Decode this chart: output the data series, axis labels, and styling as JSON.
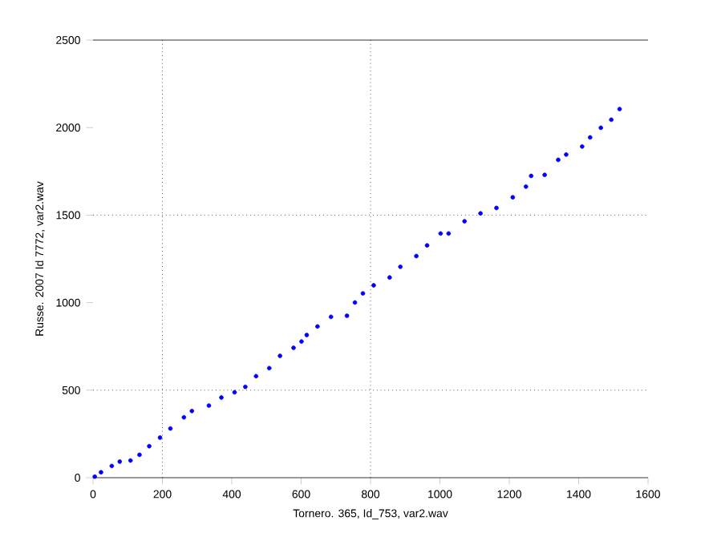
{
  "chart_data": {
    "type": "scatter",
    "xlabel": "Tornero. 365, Id_753, var2.wav",
    "ylabel": "Russe. 2007 Id 7772, var2.wav",
    "xlim": [
      0,
      1600
    ],
    "ylim": [
      0,
      2500
    ],
    "xticks": [
      0,
      200,
      400,
      600,
      800,
      1000,
      1200,
      1400,
      1600
    ],
    "yticks": [
      0,
      500,
      1000,
      1500,
      2000,
      2500
    ],
    "ref_lines": [
      {
        "axis": "x",
        "value": 200,
        "line_style": "dotted"
      },
      {
        "axis": "x",
        "value": 800,
        "line_style": "dotted"
      },
      {
        "axis": "y",
        "value": 500,
        "line_style": "dotted"
      },
      {
        "axis": "y",
        "value": 1500,
        "line_style": "dotted"
      }
    ],
    "series": [
      {
        "color": "#0000ff",
        "x": [
          5,
          23,
          54,
          77,
          108,
          134,
          162,
          193,
          223,
          262,
          285,
          334,
          370,
          408,
          439,
          470,
          508,
          539,
          578,
          601,
          616,
          647,
          686,
          732,
          755,
          778,
          809,
          855,
          886,
          932,
          963,
          1002,
          1025,
          1071,
          1117,
          1163,
          1210,
          1248,
          1263,
          1302,
          1341,
          1364,
          1410,
          1433,
          1464,
          1494,
          1518
        ],
        "values": [
          6,
          31,
          67,
          92,
          98,
          131,
          180,
          229,
          281,
          345,
          381,
          412,
          458,
          488,
          519,
          580,
          626,
          696,
          742,
          778,
          815,
          864,
          919,
          925,
          1001,
          1053,
          1099,
          1144,
          1205,
          1266,
          1327,
          1395,
          1395,
          1465,
          1510,
          1541,
          1602,
          1663,
          1724,
          1730,
          1816,
          1846,
          1892,
          1944,
          1999,
          2045,
          2106
        ]
      }
    ]
  }
}
